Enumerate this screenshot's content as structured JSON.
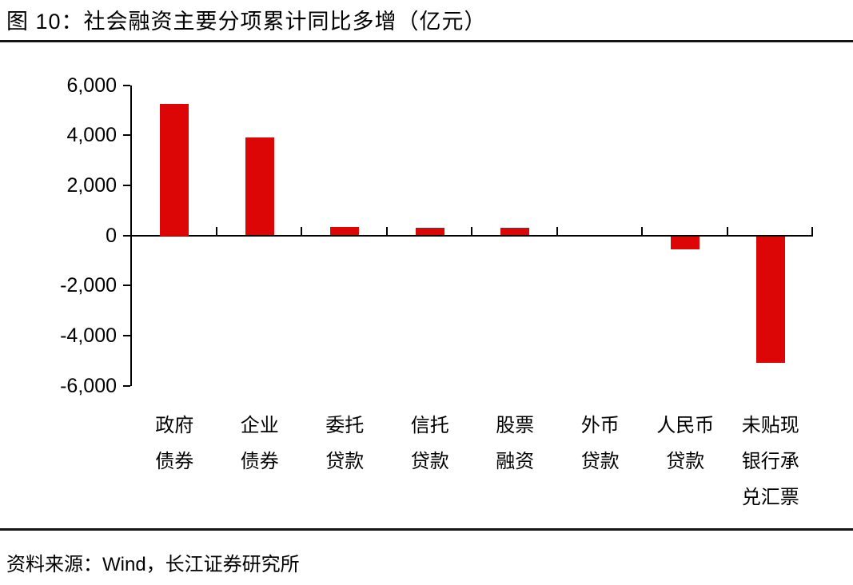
{
  "figure": {
    "title": "图 10：社会融资主要分项累计同比多增（亿元）",
    "source": "资料来源：Wind，长江证券研究所"
  },
  "chart_data": {
    "type": "bar",
    "title": "社会融资主要分项累计同比多增（亿元）",
    "categories": [
      "政府债券",
      "企业债券",
      "委托贷款",
      "信托贷款",
      "股票融资",
      "外币贷款",
      "人民币贷款",
      "未贴现银行承兑汇票"
    ],
    "category_lines": [
      [
        "政府",
        "债券"
      ],
      [
        "企业",
        "债券"
      ],
      [
        "委托",
        "贷款"
      ],
      [
        "信托",
        "贷款"
      ],
      [
        "股票",
        "融资"
      ],
      [
        "外币",
        "贷款"
      ],
      [
        "人民币",
        "贷款"
      ],
      [
        "未贴现",
        "银行承",
        "兑汇票"
      ]
    ],
    "values": [
      5250,
      3900,
      330,
      310,
      300,
      0,
      -520,
      -5050
    ],
    "xlabel": "",
    "ylabel": "",
    "ylim": [
      -6000,
      6000
    ],
    "ytick_step": 2000,
    "y_tick_labels": [
      "6,000",
      "4,000",
      "2,000",
      "0",
      "-2,000",
      "-4,000",
      "-6,000"
    ],
    "y_tick_values": [
      6000,
      4000,
      2000,
      0,
      -2000,
      -4000,
      -6000
    ],
    "grid": false,
    "legend_position": "none",
    "bar_color": "#dd0606",
    "axis_color": "#000000"
  }
}
